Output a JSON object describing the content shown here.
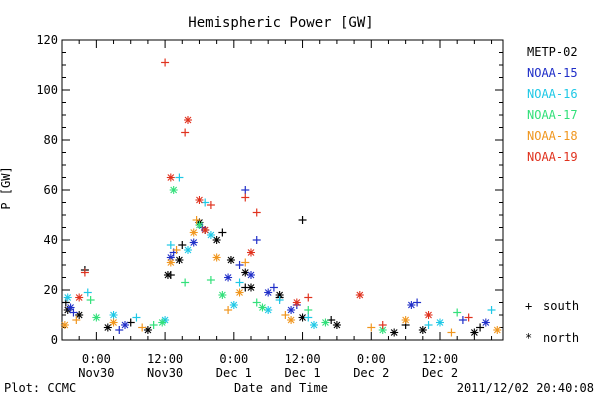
{
  "chart_data": {
    "type": "scatter",
    "title": "Hemispheric Power [GW]",
    "ylabel": "P [GW]",
    "xlabel": "Date and Time",
    "ylim": [
      0,
      120
    ],
    "yticks": [
      0,
      20,
      40,
      60,
      80,
      100,
      120
    ],
    "xlim": [
      "2011-11-29T18:00",
      "2011-12-02T23:00"
    ],
    "xticks": [
      {
        "time": "2011-11-30T00:00",
        "top": "0:00",
        "bottom": "Nov30"
      },
      {
        "time": "2011-11-30T12:00",
        "top": "12:00",
        "bottom": "Nov30"
      },
      {
        "time": "2011-12-01T00:00",
        "top": "0:00",
        "bottom": "Dec 1"
      },
      {
        "time": "2011-12-01T12:00",
        "top": "12:00",
        "bottom": "Dec 1"
      },
      {
        "time": "2011-12-02T00:00",
        "top": "0:00",
        "bottom": "Dec 2"
      },
      {
        "time": "2011-12-02T12:00",
        "top": "12:00",
        "bottom": "Dec 2"
      }
    ],
    "markers": [
      {
        "symbol": "+",
        "label": "south"
      },
      {
        "symbol": "*",
        "label": "north"
      }
    ],
    "footer_left": "Plot: CCMC",
    "footer_right": "2011/12/02 20:40:08",
    "series": [
      {
        "name": "METP-02",
        "color": "#000000",
        "south": [
          [
            "2011-11-29T18:40",
            15
          ],
          [
            "2011-11-29T22:00",
            28
          ],
          [
            "2011-11-30T06:00",
            7
          ],
          [
            "2011-11-30T13:00",
            26
          ],
          [
            "2011-11-30T15:00",
            38
          ],
          [
            "2011-11-30T19:00",
            44
          ],
          [
            "2011-11-30T22:00",
            43
          ],
          [
            "2011-12-01T02:00",
            21
          ],
          [
            "2011-12-01T08:00",
            17
          ],
          [
            "2011-12-01T12:00",
            48
          ],
          [
            "2011-12-01T17:00",
            8
          ],
          [
            "2011-12-02T06:00",
            6
          ],
          [
            "2011-12-02T19:00",
            5
          ]
        ],
        "north": [
          [
            "2011-11-29T19:00",
            12
          ],
          [
            "2011-11-29T21:00",
            10
          ],
          [
            "2011-11-30T02:00",
            5
          ],
          [
            "2011-11-30T09:00",
            4
          ],
          [
            "2011-11-30T12:30",
            26
          ],
          [
            "2011-11-30T14:30",
            32
          ],
          [
            "2011-11-30T18:00",
            47
          ],
          [
            "2011-11-30T21:00",
            40
          ],
          [
            "2011-11-30T23:30",
            32
          ],
          [
            "2011-12-01T02:00",
            27
          ],
          [
            "2011-12-01T03:00",
            21
          ],
          [
            "2011-12-01T08:00",
            18
          ],
          [
            "2011-12-01T12:00",
            9
          ],
          [
            "2011-12-01T18:00",
            6
          ],
          [
            "2011-12-02T04:00",
            3
          ],
          [
            "2011-12-02T09:00",
            4
          ],
          [
            "2011-12-02T18:00",
            3
          ]
        ]
      },
      {
        "name": "NOAA-15",
        "color": "#1f2ec8",
        "south": [
          [
            "2011-11-29T20:00",
            11
          ],
          [
            "2011-11-30T04:00",
            4
          ],
          [
            "2011-11-30T13:30",
            35
          ],
          [
            "2011-11-30T18:30",
            45
          ],
          [
            "2011-12-01T01:00",
            30
          ],
          [
            "2011-12-01T02:00",
            60
          ],
          [
            "2011-12-01T04:00",
            40
          ],
          [
            "2011-12-01T07:00",
            21
          ],
          [
            "2011-12-01T11:00",
            14
          ],
          [
            "2011-12-02T08:00",
            15
          ],
          [
            "2011-12-02T16:00",
            8
          ]
        ],
        "north": [
          [
            "2011-11-29T19:30",
            13
          ],
          [
            "2011-11-30T05:00",
            6
          ],
          [
            "2011-11-30T13:00",
            33
          ],
          [
            "2011-11-30T17:00",
            39
          ],
          [
            "2011-11-30T23:00",
            25
          ],
          [
            "2011-12-01T03:00",
            26
          ],
          [
            "2011-12-01T06:00",
            19
          ],
          [
            "2011-12-01T10:00",
            12
          ],
          [
            "2011-12-02T07:00",
            14
          ],
          [
            "2011-12-02T20:00",
            7
          ]
        ]
      },
      {
        "name": "NOAA-16",
        "color": "#1ec8e6",
        "south": [
          [
            "2011-11-29T22:30",
            19
          ],
          [
            "2011-11-30T07:00",
            9
          ],
          [
            "2011-11-30T13:00",
            38
          ],
          [
            "2011-11-30T14:30",
            65
          ],
          [
            "2011-11-30T19:00",
            55
          ],
          [
            "2011-12-01T01:00",
            23
          ],
          [
            "2011-12-01T08:00",
            16
          ],
          [
            "2011-12-01T13:00",
            9
          ],
          [
            "2011-12-02T10:00",
            6
          ],
          [
            "2011-12-02T21:00",
            12
          ]
        ],
        "north": [
          [
            "2011-11-29T19:00",
            17
          ],
          [
            "2011-11-30T03:00",
            10
          ],
          [
            "2011-11-30T12:00",
            8
          ],
          [
            "2011-11-30T16:00",
            36
          ],
          [
            "2011-11-30T20:00",
            42
          ],
          [
            "2011-12-01T00:00",
            14
          ],
          [
            "2011-12-01T06:00",
            12
          ],
          [
            "2011-12-01T14:00",
            6
          ],
          [
            "2011-12-02T12:00",
            7
          ]
        ]
      },
      {
        "name": "NOAA-17",
        "color": "#32e07a",
        "south": [
          [
            "2011-11-29T23:00",
            16
          ],
          [
            "2011-11-30T10:00",
            6
          ],
          [
            "2011-11-30T15:30",
            23
          ],
          [
            "2011-11-30T20:00",
            24
          ],
          [
            "2011-12-01T04:00",
            15
          ],
          [
            "2011-12-01T13:00",
            12
          ],
          [
            "2011-12-02T15:00",
            11
          ]
        ],
        "north": [
          [
            "2011-11-30T00:00",
            9
          ],
          [
            "2011-11-30T11:30",
            7
          ],
          [
            "2011-11-30T13:30",
            60
          ],
          [
            "2011-11-30T18:00",
            46
          ],
          [
            "2011-11-30T22:00",
            18
          ],
          [
            "2011-12-01T05:00",
            13
          ],
          [
            "2011-12-01T16:00",
            7
          ],
          [
            "2011-12-02T02:00",
            4
          ]
        ]
      },
      {
        "name": "NOAA-18",
        "color": "#f0961e",
        "south": [
          [
            "2011-11-29T20:30",
            8
          ],
          [
            "2011-11-30T08:00",
            5
          ],
          [
            "2011-11-30T14:00",
            36
          ],
          [
            "2011-11-30T17:30",
            48
          ],
          [
            "2011-11-30T23:00",
            12
          ],
          [
            "2011-12-01T02:00",
            31
          ],
          [
            "2011-12-01T09:00",
            10
          ],
          [
            "2011-12-02T00:00",
            5
          ],
          [
            "2011-12-02T14:00",
            3
          ]
        ],
        "north": [
          [
            "2011-11-29T18:30",
            6
          ],
          [
            "2011-11-30T03:00",
            7
          ],
          [
            "2011-11-30T13:00",
            31
          ],
          [
            "2011-11-30T17:00",
            43
          ],
          [
            "2011-11-30T21:00",
            33
          ],
          [
            "2011-12-01T01:00",
            19
          ],
          [
            "2011-12-01T10:00",
            8
          ],
          [
            "2011-12-02T06:00",
            8
          ],
          [
            "2011-12-02T22:00",
            4
          ]
        ]
      },
      {
        "name": "NOAA-19",
        "color": "#e0321e",
        "south": [
          [
            "2011-11-29T22:00",
            27
          ],
          [
            "2011-11-30T12:00",
            111
          ],
          [
            "2011-11-30T15:30",
            83
          ],
          [
            "2011-11-30T20:00",
            54
          ],
          [
            "2011-12-01T02:00",
            57
          ],
          [
            "2011-12-01T04:00",
            51
          ],
          [
            "2011-12-01T13:00",
            17
          ],
          [
            "2011-12-02T02:00",
            6
          ],
          [
            "2011-12-02T17:00",
            9
          ]
        ],
        "north": [
          [
            "2011-11-29T21:00",
            17
          ],
          [
            "2011-11-30T13:00",
            65
          ],
          [
            "2011-11-30T16:00",
            88
          ],
          [
            "2011-11-30T18:00",
            56
          ],
          [
            "2011-11-30T19:00",
            44
          ],
          [
            "2011-12-01T03:00",
            35
          ],
          [
            "2011-12-01T11:00",
            15
          ],
          [
            "2011-12-01T22:00",
            18
          ],
          [
            "2011-12-02T10:00",
            10
          ]
        ]
      }
    ]
  }
}
